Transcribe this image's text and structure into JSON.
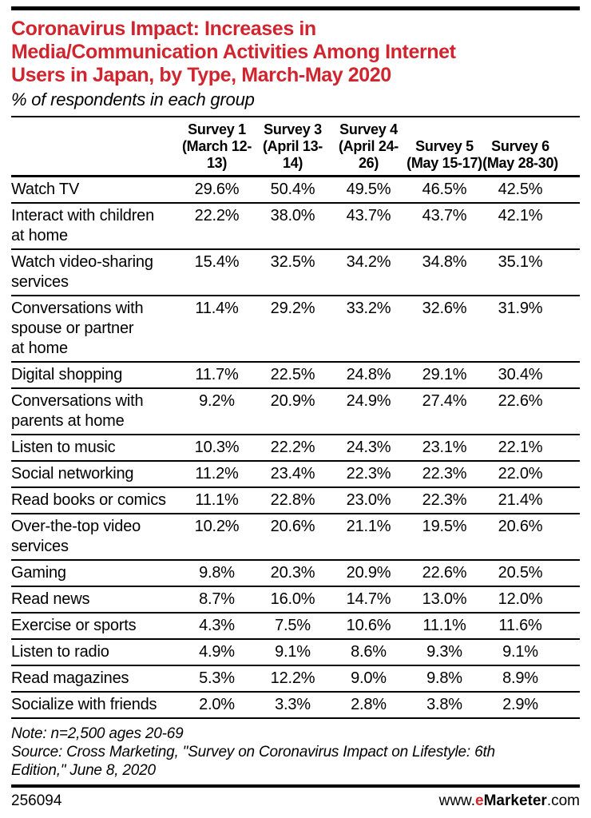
{
  "accent": {
    "red": "#d0252e"
  },
  "header": {
    "title_lines": [
      "Coronavirus Impact: Increases in",
      "Media/Communication Activities Among Internet",
      "Users in Japan, by Type, March-May 2020"
    ]
  },
  "chart_data": {
    "type": "table",
    "title": "Coronavirus Impact: Increases in Media/Communication Activities Among Internet Users in Japan, by Type, March-May 2020",
    "subtitle": "% of respondents in each group",
    "unit": "% of respondents in each group",
    "columns": [
      "Survey 1 (March 12-13)",
      "Survey 3 (April 13-14)",
      "Survey 4 (April 24-26)",
      "Survey 5 (May 15-17)",
      "Survey 6 (May 28-30)"
    ],
    "rows": [
      {
        "activity": "Watch TV",
        "values_pct": [
          29.6,
          50.4,
          49.5,
          46.5,
          42.5
        ]
      },
      {
        "activity": "Interact with children at home",
        "activity_display": "Interact with children\nat home",
        "values_pct": [
          22.2,
          38.0,
          43.7,
          43.7,
          42.1
        ]
      },
      {
        "activity": "Watch video-sharing services",
        "activity_display": "Watch video-sharing\nservices",
        "values_pct": [
          15.4,
          32.5,
          34.2,
          34.8,
          35.1
        ]
      },
      {
        "activity": "Conversations with spouse or partner at home",
        "activity_display": "Conversations with\nspouse or partner\nat home",
        "values_pct": [
          11.4,
          29.2,
          33.2,
          32.6,
          31.9
        ]
      },
      {
        "activity": "Digital shopping",
        "values_pct": [
          11.7,
          22.5,
          24.8,
          29.1,
          30.4
        ]
      },
      {
        "activity": "Conversations with parents at home",
        "activity_display": "Conversations with\nparents at home",
        "values_pct": [
          9.2,
          20.9,
          24.9,
          27.4,
          22.6
        ]
      },
      {
        "activity": "Listen to music",
        "values_pct": [
          10.3,
          22.2,
          24.3,
          23.1,
          22.1
        ]
      },
      {
        "activity": "Social networking",
        "values_pct": [
          11.2,
          23.4,
          22.3,
          22.3,
          22.0
        ]
      },
      {
        "activity": "Read books or comics",
        "values_pct": [
          11.1,
          22.8,
          23.0,
          22.3,
          21.4
        ]
      },
      {
        "activity": "Over-the-top video services",
        "activity_display": "Over-the-top video\nservices",
        "values_pct": [
          10.2,
          20.6,
          21.1,
          19.5,
          20.6
        ]
      },
      {
        "activity": "Gaming",
        "values_pct": [
          9.8,
          20.3,
          20.9,
          22.6,
          20.5
        ]
      },
      {
        "activity": "Read news",
        "values_pct": [
          8.7,
          16.0,
          14.7,
          13.0,
          12.0
        ]
      },
      {
        "activity": "Exercise or sports",
        "values_pct": [
          4.3,
          7.5,
          10.6,
          11.1,
          11.6
        ]
      },
      {
        "activity": "Listen to radio",
        "values_pct": [
          4.9,
          9.1,
          8.6,
          9.3,
          9.1
        ]
      },
      {
        "activity": "Read magazines",
        "values_pct": [
          5.3,
          12.2,
          9.0,
          9.8,
          8.9
        ]
      },
      {
        "activity": "Socialize with friends",
        "values_pct": [
          2.0,
          3.3,
          2.8,
          3.8,
          2.9
        ]
      }
    ],
    "value_format": "percent_1dp",
    "note": "Note: n=2,500 ages 20-69",
    "source": "Source: Cross Marketing, \"Survey on Coronavirus Impact on Lifestyle: 6th Edition,\" June 8, 2020"
  },
  "footer": {
    "source_display": "Source: Cross Marketing, \"Survey on Coronavirus Impact on Lifestyle: 6th\nEdition,\" June 8, 2020",
    "chart_id": "256094",
    "website": {
      "prefix": "www.",
      "e": "e",
      "brand": "Marketer",
      "suffix": ".com"
    }
  }
}
